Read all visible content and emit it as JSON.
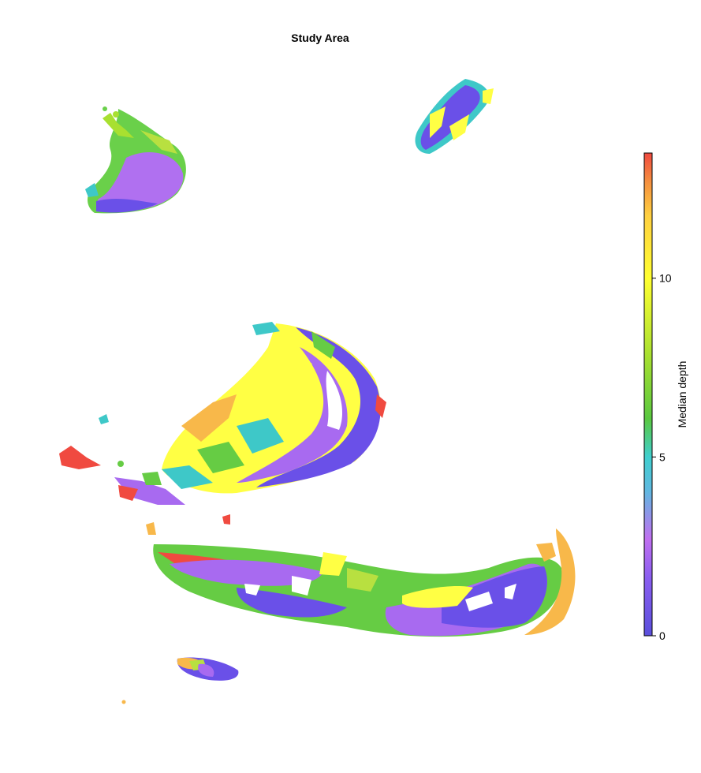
{
  "map": {
    "title": "Study Area"
  },
  "colorbar": {
    "label": "Median depth",
    "range": [
      0,
      13.5
    ],
    "ticks": [
      {
        "value": 0,
        "label": "0"
      },
      {
        "value": 5,
        "label": "5"
      },
      {
        "value": 10,
        "label": "10"
      }
    ],
    "colors": [
      "#5a4fdc",
      "#b070f0",
      "#8a9ee0",
      "#40cfcf",
      "#5ac840",
      "#a8e030",
      "#ffff30",
      "#ffd040",
      "#f59040",
      "#f04a40"
    ]
  },
  "legend_colors": {
    "deep": "#6a50e8",
    "purple": "#a86af0",
    "teal": "#3ec8c8",
    "green": "#66cc44",
    "lime": "#b8e040",
    "yellow": "#ffff44",
    "orange": "#f8b84a",
    "red": "#f04a40"
  }
}
